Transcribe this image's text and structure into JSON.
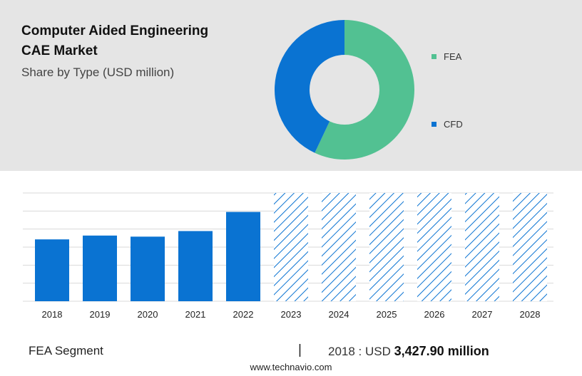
{
  "header": {
    "title_line1": "Computer Aided Engineering",
    "title_line2": "CAE Market",
    "subtitle": "Share by Type (USD million)"
  },
  "colors": {
    "fea": "#52c192",
    "cfd": "#0a73d2",
    "bar": "#0a73d2",
    "grid": "#d9d9d9",
    "top_bg": "#e5e5e5"
  },
  "chart_data": [
    {
      "type": "pie",
      "variant": "donut",
      "slices": [
        {
          "name": "FEA",
          "value": 57
        },
        {
          "name": "CFD",
          "value": 43
        }
      ],
      "legend_placement": "right"
    },
    {
      "type": "bar",
      "categories": [
        "2018",
        "2019",
        "2020",
        "2021",
        "2022",
        "2023",
        "2024",
        "2025",
        "2026",
        "2027",
        "2028"
      ],
      "values": [
        3427.9,
        3640,
        3580,
        3890,
        4950,
        6000,
        6000,
        6000,
        6000,
        6000,
        6000
      ],
      "forecast_from": "2023",
      "grid": true,
      "ylim": [
        0,
        6000
      ]
    }
  ],
  "footer": {
    "segment": "FEA Segment",
    "separator": "|",
    "year_label": "2018 : USD",
    "value": "3,427.90 million",
    "url": "www.technavio.com"
  }
}
